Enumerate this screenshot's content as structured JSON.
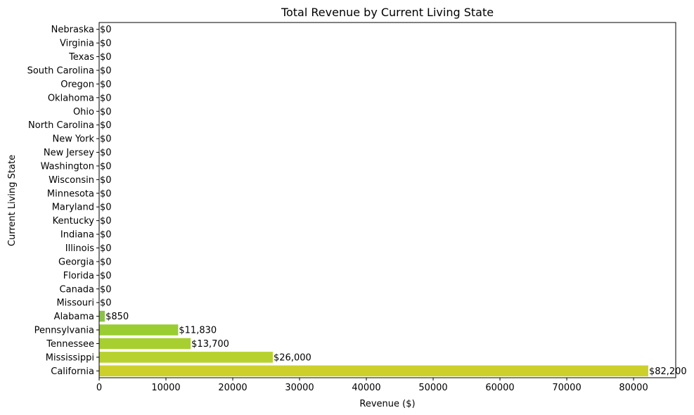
{
  "chart_data": {
    "type": "bar",
    "orientation": "horizontal",
    "title": "Total Revenue by Current Living State",
    "xlabel": "Revenue ($)",
    "ylabel": "Current Living State",
    "xlim": [
      0,
      86310
    ],
    "xticks": [
      0,
      10000,
      20000,
      30000,
      40000,
      50000,
      60000,
      70000,
      80000
    ],
    "grid": false,
    "categories": [
      "Nebraska",
      "Virginia",
      "Texas",
      "South Carolina",
      "Oregon",
      "Oklahoma",
      "Ohio",
      "North Carolina",
      "New York",
      "New Jersey",
      "Washington",
      "Wisconsin",
      "Minnesota",
      "Maryland",
      "Kentucky",
      "Indiana",
      "Illinois",
      "Georgia",
      "Florida",
      "Canada",
      "Missouri",
      "Alabama",
      "Pennsylvania",
      "Tennessee",
      "Mississippi",
      "California"
    ],
    "values": [
      0,
      0,
      0,
      0,
      0,
      0,
      0,
      0,
      0,
      0,
      0,
      0,
      0,
      0,
      0,
      0,
      0,
      0,
      0,
      0,
      0,
      850,
      11830,
      13700,
      26000,
      82200
    ],
    "data_labels": [
      "$0",
      "$0",
      "$0",
      "$0",
      "$0",
      "$0",
      "$0",
      "$0",
      "$0",
      "$0",
      "$0",
      "$0",
      "$0",
      "$0",
      "$0",
      "$0",
      "$0",
      "$0",
      "$0",
      "$0",
      "$0",
      "$850",
      "$11,830",
      "$13,700",
      "$26,000",
      "$82,200"
    ],
    "colors": [
      "#1f9e89",
      "#22a386",
      "#28a883",
      "#2eac7f",
      "#35b07b",
      "#3db477",
      "#46b872",
      "#50bc6d",
      "#5ac067",
      "#65c461",
      "#70c85b",
      "#7bcb54",
      "#87ce4d",
      "#93d146",
      "#8bc34a",
      "#95c840",
      "#9fcc3a",
      "#a9cf35",
      "#b3d230",
      "#bcd32b",
      "#c4d42c",
      "#8bc34a",
      "#9acd32",
      "#a8cf30",
      "#b7d22e",
      "#cdd02b"
    ]
  }
}
